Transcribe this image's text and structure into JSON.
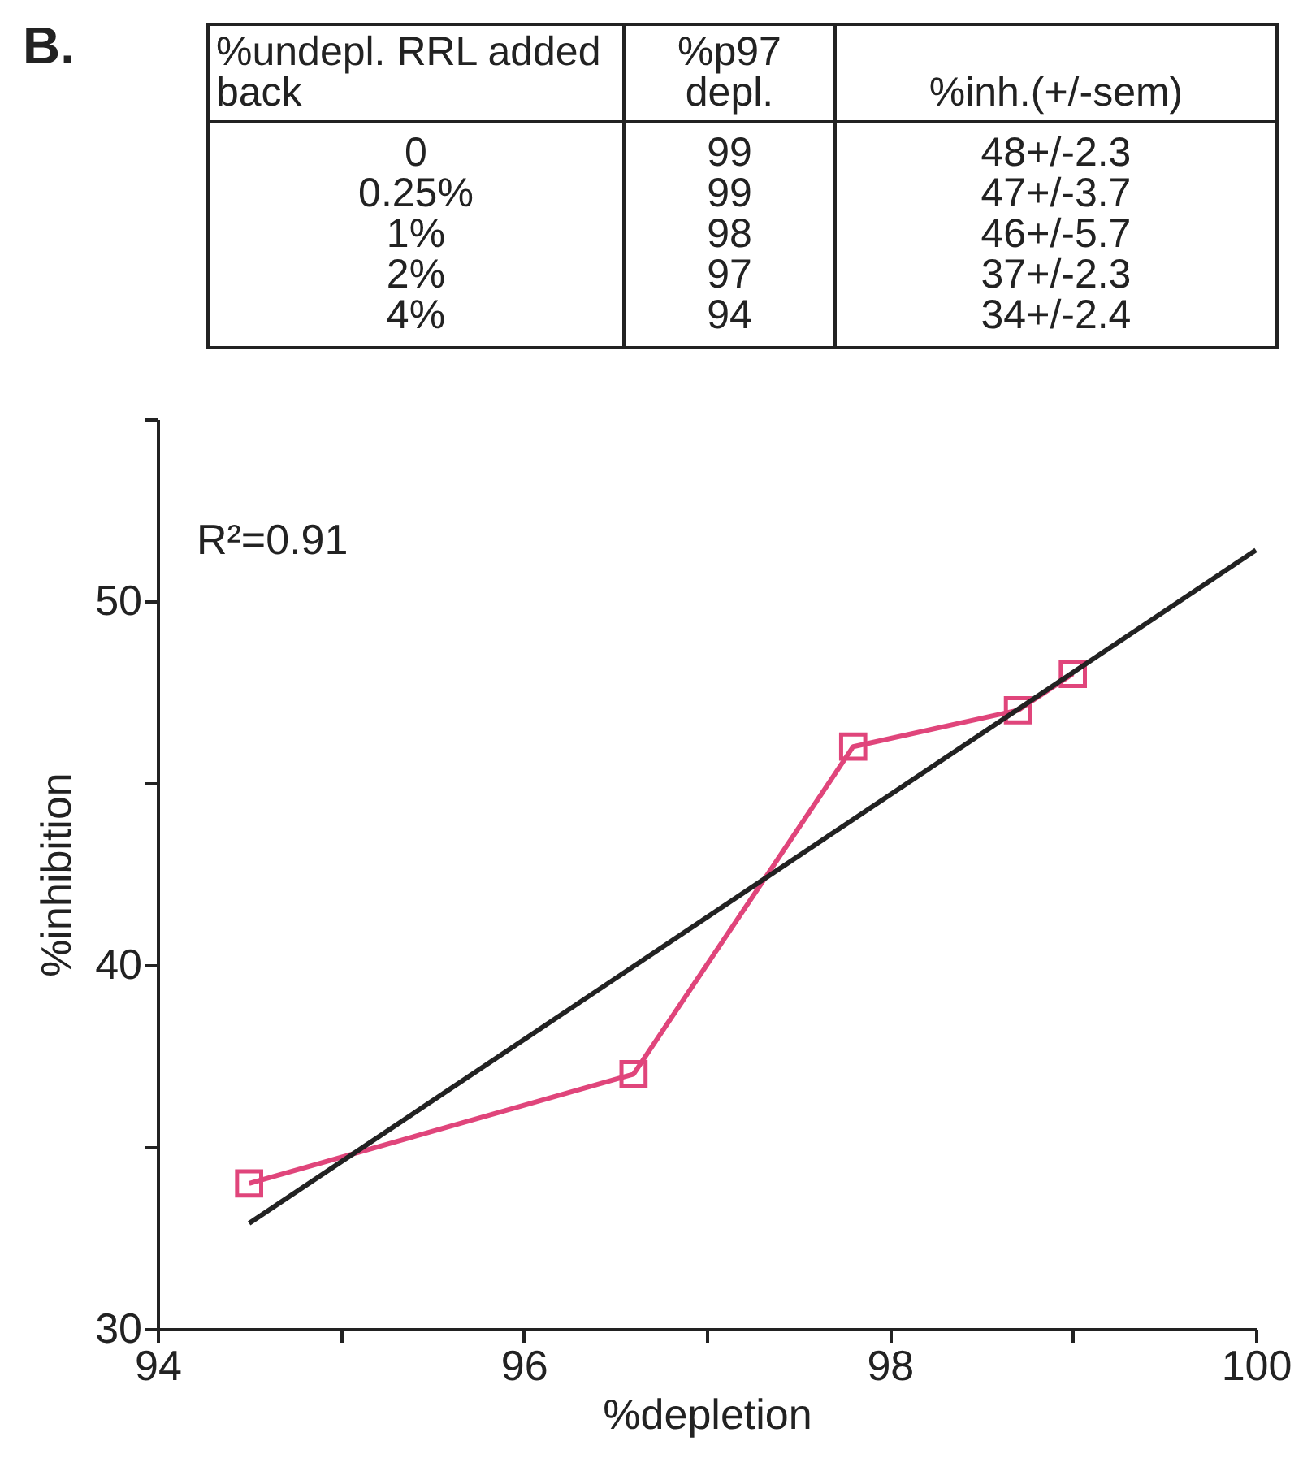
{
  "chart_data": {
    "type": "line",
    "title": "B.",
    "xlabel": "%depletion",
    "ylabel": "%inhibition",
    "x": [
      94.5,
      96.6,
      97.8,
      98.7,
      99.0
    ],
    "series": [
      {
        "color": "#e0457b",
        "values": [
          34,
          37,
          46,
          47,
          48
        ],
        "marker": "square"
      },
      {
        "color": "#222222",
        "x": [
          94.5,
          100
        ],
        "values": [
          32.9,
          51.4
        ],
        "marker": "none"
      }
    ],
    "xlim": [
      94,
      100
    ],
    "xticks": [
      94,
      {
        "value": 95,
        "label": null
      },
      96,
      {
        "value": 97,
        "label": null
      },
      98,
      {
        "value": 99,
        "label": null
      },
      100
    ],
    "ylim": [
      30,
      55
    ],
    "yticks": [
      30,
      {
        "value": 35,
        "label": null
      },
      40,
      {
        "value": 45,
        "label": null
      },
      50,
      {
        "value": 55,
        "label": null
      }
    ],
    "grid": false,
    "line_style": "solid",
    "annotations": [
      "%undepl. RRL added back",
      "%p97 depl.",
      "%inh.(+/-sem)",
      "0",
      "99",
      "48+/-2.3",
      "0.25%",
      "99",
      "47+/-3.7",
      "1%",
      "98",
      "46+/-5.7",
      "2%",
      "97",
      "37+/-2.3",
      "4%",
      "94",
      "34+/-2.4",
      "R²=0.91"
    ]
  }
}
